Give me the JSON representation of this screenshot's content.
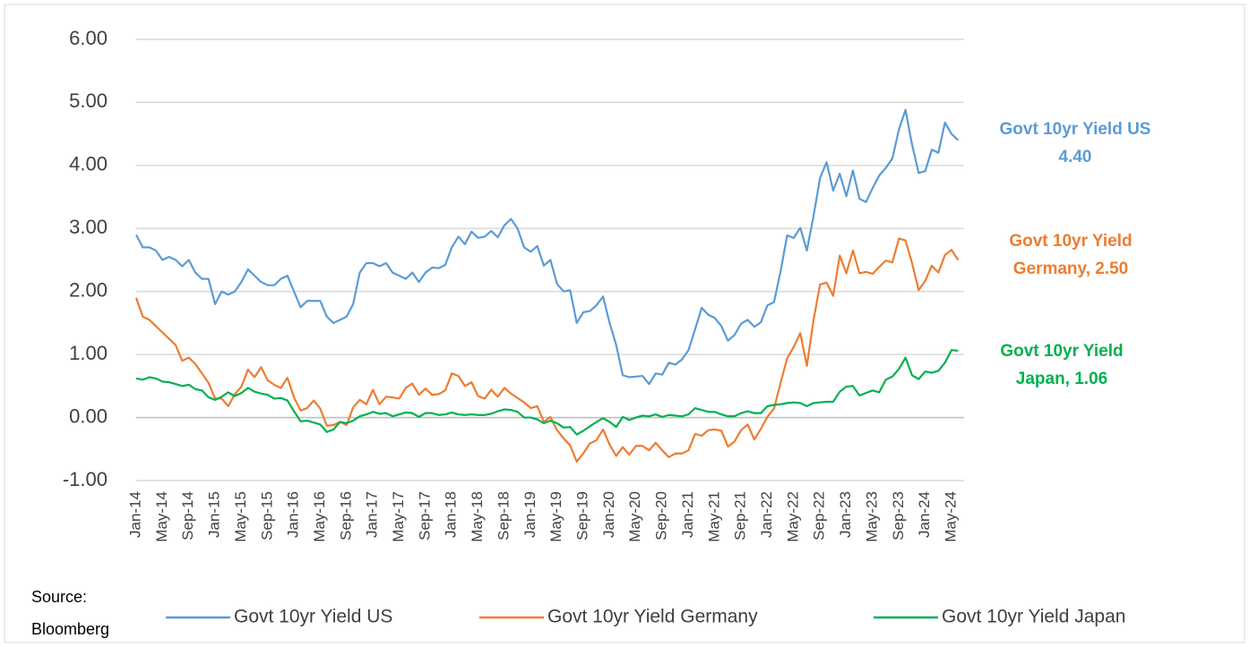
{
  "chart_data": {
    "type": "line",
    "categories": [
      "Jan-14",
      null,
      null,
      null,
      "May-14",
      null,
      null,
      null,
      "Sep-14",
      null,
      null,
      null,
      "Jan-15",
      null,
      null,
      null,
      "May-15",
      null,
      null,
      null,
      "Sep-15",
      null,
      null,
      null,
      "Jan-16",
      null,
      null,
      null,
      "May-16",
      null,
      null,
      null,
      "Sep-16",
      null,
      null,
      null,
      "Jan-17",
      null,
      null,
      null,
      "May-17",
      null,
      null,
      null,
      "Sep-17",
      null,
      null,
      null,
      "Jan-18",
      null,
      null,
      null,
      "May-18",
      null,
      null,
      null,
      "Sep-18",
      null,
      null,
      null,
      "Jan-19",
      null,
      null,
      null,
      "May-19",
      null,
      null,
      null,
      "Sep-19",
      null,
      null,
      null,
      "Jan-20",
      null,
      null,
      null,
      "May-20",
      null,
      null,
      null,
      "Sep-20",
      null,
      null,
      null,
      "Jan-21",
      null,
      null,
      null,
      "May-21",
      null,
      null,
      null,
      "Sep-21",
      null,
      null,
      null,
      "Jan-22",
      null,
      null,
      null,
      "May-22",
      null,
      null,
      null,
      "Sep-22",
      null,
      null,
      null,
      "Jan-23",
      null,
      null,
      null,
      "May-23",
      null,
      null,
      null,
      "Sep-23",
      null,
      null,
      null,
      "Jan-24",
      null,
      null,
      null,
      "May-24",
      null
    ],
    "series": [
      {
        "name": "Govt 10yr Yield US",
        "color": "#5b9bd5",
        "values": [
          2.9,
          2.7,
          2.7,
          2.65,
          2.5,
          2.55,
          2.5,
          2.4,
          2.5,
          2.3,
          2.2,
          2.2,
          1.8,
          2.0,
          1.95,
          2.0,
          2.15,
          2.35,
          2.25,
          2.15,
          2.1,
          2.1,
          2.2,
          2.25,
          2.0,
          1.75,
          1.85,
          1.85,
          1.85,
          1.6,
          1.5,
          1.55,
          1.6,
          1.8,
          2.3,
          2.45,
          2.45,
          2.4,
          2.45,
          2.3,
          2.25,
          2.2,
          2.3,
          2.15,
          2.3,
          2.38,
          2.37,
          2.42,
          2.7,
          2.87,
          2.75,
          2.95,
          2.85,
          2.87,
          2.96,
          2.86,
          3.05,
          3.15,
          3.0,
          2.7,
          2.63,
          2.72,
          2.41,
          2.5,
          2.12,
          2.0,
          2.02,
          1.5,
          1.67,
          1.69,
          1.78,
          1.92,
          1.5,
          1.15,
          0.67,
          0.64,
          0.65,
          0.66,
          0.53,
          0.7,
          0.68,
          0.87,
          0.84,
          0.92,
          1.07,
          1.4,
          1.74,
          1.63,
          1.58,
          1.45,
          1.22,
          1.31,
          1.49,
          1.55,
          1.44,
          1.51,
          1.78,
          1.83,
          2.32,
          2.89,
          2.85,
          3.01,
          2.65,
          3.19,
          3.8,
          4.05,
          3.6,
          3.87,
          3.51,
          3.92,
          3.47,
          3.42,
          3.64,
          3.84,
          3.96,
          4.11,
          4.57,
          4.88,
          4.33,
          3.88,
          3.91,
          4.25,
          4.2,
          4.68,
          4.5,
          4.4
        ]
      },
      {
        "name": "Govt 10yr Yield Germany",
        "color": "#ed7d31",
        "values": [
          1.9,
          1.6,
          1.55,
          1.45,
          1.35,
          1.25,
          1.15,
          0.9,
          0.95,
          0.85,
          0.7,
          0.55,
          0.3,
          0.3,
          0.18,
          0.37,
          0.49,
          0.76,
          0.64,
          0.8,
          0.59,
          0.52,
          0.47,
          0.63,
          0.32,
          0.11,
          0.15,
          0.27,
          0.14,
          -0.13,
          -0.12,
          -0.07,
          -0.12,
          0.16,
          0.28,
          0.21,
          0.44,
          0.21,
          0.33,
          0.32,
          0.3,
          0.47,
          0.54,
          0.36,
          0.46,
          0.36,
          0.37,
          0.43,
          0.7,
          0.66,
          0.5,
          0.56,
          0.34,
          0.3,
          0.44,
          0.33,
          0.47,
          0.38,
          0.31,
          0.24,
          0.15,
          0.18,
          -0.07,
          0.01,
          -0.2,
          -0.33,
          -0.44,
          -0.7,
          -0.57,
          -0.41,
          -0.36,
          -0.19,
          -0.43,
          -0.61,
          -0.47,
          -0.59,
          -0.45,
          -0.45,
          -0.52,
          -0.4,
          -0.52,
          -0.63,
          -0.57,
          -0.57,
          -0.52,
          -0.26,
          -0.29,
          -0.2,
          -0.19,
          -0.21,
          -0.46,
          -0.38,
          -0.2,
          -0.11,
          -0.35,
          -0.18,
          0.01,
          0.14,
          0.55,
          0.94,
          1.12,
          1.34,
          0.82,
          1.54,
          2.11,
          2.14,
          1.93,
          2.57,
          2.29,
          2.65,
          2.29,
          2.31,
          2.28,
          2.39,
          2.49,
          2.46,
          2.84,
          2.81,
          2.45,
          2.02,
          2.17,
          2.41,
          2.3,
          2.58,
          2.66,
          2.5
        ]
      },
      {
        "name": "Govt 10yr Yield Japan",
        "color": "#00b050",
        "values": [
          0.62,
          0.6,
          0.64,
          0.62,
          0.57,
          0.56,
          0.53,
          0.5,
          0.52,
          0.45,
          0.43,
          0.32,
          0.28,
          0.33,
          0.4,
          0.34,
          0.39,
          0.47,
          0.41,
          0.38,
          0.36,
          0.3,
          0.31,
          0.27,
          0.1,
          -0.06,
          -0.05,
          -0.08,
          -0.11,
          -0.23,
          -0.19,
          -0.07,
          -0.09,
          -0.05,
          0.02,
          0.05,
          0.09,
          0.06,
          0.07,
          0.02,
          0.05,
          0.08,
          0.07,
          0.01,
          0.07,
          0.07,
          0.04,
          0.05,
          0.08,
          0.05,
          0.04,
          0.05,
          0.04,
          0.04,
          0.06,
          0.1,
          0.13,
          0.12,
          0.09,
          0.0,
          0.0,
          -0.03,
          -0.09,
          -0.05,
          -0.09,
          -0.16,
          -0.15,
          -0.27,
          -0.21,
          -0.14,
          -0.07,
          -0.01,
          -0.07,
          -0.15,
          0.01,
          -0.04,
          0.0,
          0.03,
          0.02,
          0.05,
          0.01,
          0.04,
          0.03,
          0.02,
          0.05,
          0.15,
          0.12,
          0.09,
          0.09,
          0.05,
          0.02,
          0.02,
          0.07,
          0.1,
          0.07,
          0.07,
          0.18,
          0.2,
          0.21,
          0.23,
          0.24,
          0.23,
          0.18,
          0.23,
          0.24,
          0.25,
          0.25,
          0.41,
          0.49,
          0.5,
          0.35,
          0.39,
          0.43,
          0.4,
          0.6,
          0.65,
          0.77,
          0.95,
          0.67,
          0.61,
          0.73,
          0.71,
          0.74,
          0.87,
          1.07,
          1.06
        ]
      }
    ],
    "ylim": [
      -1,
      6
    ],
    "yticks": [
      {
        "value": -1,
        "label": "-1.00"
      },
      {
        "value": 0,
        "label": "0.00"
      },
      {
        "value": 1,
        "label": "1.00"
      },
      {
        "value": 2,
        "label": "2.00"
      },
      {
        "value": 3,
        "label": "3.00"
      },
      {
        "value": 4,
        "label": "4.00"
      },
      {
        "value": 5,
        "label": "5.00"
      },
      {
        "value": 6,
        "label": "6.00"
      }
    ],
    "grid": true,
    "annotations": [
      {
        "lines": [
          "Govt 10yr Yield US",
          "4.40"
        ],
        "color": "#5b9bd5"
      },
      {
        "lines": [
          "Govt 10yr Yield",
          "Germany, 2.50"
        ],
        "color": "#ed7d31"
      },
      {
        "lines": [
          "Govt 10yr Yield",
          "Japan, 1.06"
        ],
        "color": "#00b050"
      }
    ],
    "source": [
      "Source:",
      "Bloomberg"
    ]
  }
}
